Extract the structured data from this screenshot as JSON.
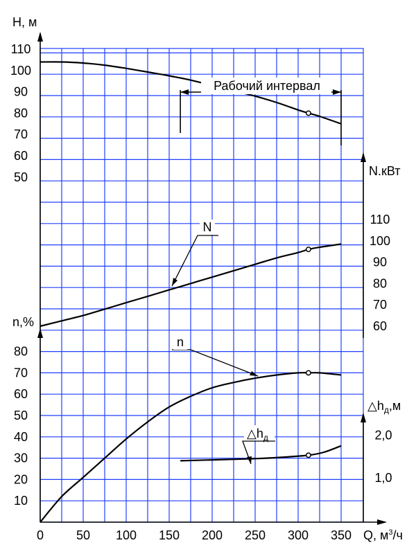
{
  "chart_data": {
    "type": "line",
    "x": {
      "label": "Q, м",
      "label_sup": "3",
      "label_tail": "/ч",
      "min": 0,
      "max": 350,
      "ticks": [
        0,
        50,
        100,
        150,
        200,
        250,
        300,
        350
      ],
      "tick_labels": [
        "0",
        "50",
        "100",
        "150",
        "200",
        "250",
        "300",
        "350"
      ]
    },
    "grid": true,
    "axes": {
      "H": {
        "label": "Н, м",
        "ticks": [
          50,
          60,
          70,
          80,
          90,
          100,
          110
        ],
        "tick_labels": [
          "50",
          "60",
          "70",
          "80",
          "90",
          "100",
          "110"
        ]
      },
      "N": {
        "label": "N.кВт",
        "ticks": [
          60,
          70,
          80,
          90,
          100,
          110
        ],
        "tick_labels": [
          "60",
          "70",
          "80",
          "90",
          "100",
          "110"
        ]
      },
      "n": {
        "label": "n,%",
        "ticks": [
          10,
          20,
          30,
          40,
          50,
          60,
          70,
          80
        ],
        "tick_labels": [
          "10",
          "20",
          "30",
          "40",
          "50",
          "60",
          "70",
          "80"
        ]
      },
      "dh": {
        "label_main": "△h",
        "label_sub": "д",
        "label_tail": ",м",
        "ticks": [
          1.0,
          2.0
        ],
        "tick_labels": [
          "1,0",
          "2,0"
        ]
      }
    },
    "series": [
      {
        "id": "H",
        "axis": "H",
        "points": [
          [
            0,
            104
          ],
          [
            25,
            104
          ],
          [
            50,
            103.5
          ],
          [
            75,
            102.5
          ],
          [
            100,
            101
          ],
          [
            125,
            99.3
          ],
          [
            150,
            97.5
          ],
          [
            175,
            95.5
          ],
          [
            200,
            93
          ],
          [
            225,
            90.5
          ],
          [
            250,
            88
          ],
          [
            275,
            85
          ],
          [
            300,
            81.5
          ],
          [
            312,
            80
          ],
          [
            325,
            78.5
          ],
          [
            350,
            75
          ]
        ],
        "marker": [
          312,
          80
        ]
      },
      {
        "id": "N",
        "axis": "N",
        "name": "N",
        "points": [
          [
            0,
            60
          ],
          [
            25,
            62.5
          ],
          [
            50,
            65
          ],
          [
            75,
            68
          ],
          [
            100,
            71
          ],
          [
            125,
            74
          ],
          [
            150,
            77
          ],
          [
            175,
            80
          ],
          [
            200,
            83
          ],
          [
            225,
            86
          ],
          [
            250,
            89
          ],
          [
            275,
            92
          ],
          [
            300,
            94.5
          ],
          [
            312,
            96
          ],
          [
            325,
            97
          ],
          [
            350,
            98.5
          ]
        ],
        "marker": [
          312,
          96
        ]
      },
      {
        "id": "n",
        "axis": "n",
        "name": "n",
        "points": [
          [
            0,
            0
          ],
          [
            25,
            12
          ],
          [
            50,
            21
          ],
          [
            75,
            30
          ],
          [
            100,
            39
          ],
          [
            125,
            47
          ],
          [
            150,
            54
          ],
          [
            175,
            59
          ],
          [
            200,
            63
          ],
          [
            225,
            65.5
          ],
          [
            250,
            67.5
          ],
          [
            275,
            69
          ],
          [
            300,
            70
          ],
          [
            312,
            70
          ],
          [
            325,
            70
          ],
          [
            350,
            69
          ]
        ],
        "marker": [
          312,
          70
        ]
      },
      {
        "id": "dh",
        "axis": "dh",
        "name_main": "△h",
        "name_sub": "д",
        "points": [
          [
            163,
            1.4
          ],
          [
            200,
            1.42
          ],
          [
            250,
            1.45
          ],
          [
            280,
            1.48
          ],
          [
            312,
            1.53
          ],
          [
            330,
            1.6
          ],
          [
            350,
            1.75
          ]
        ],
        "marker": [
          312,
          1.53
        ]
      }
    ],
    "annotations": {
      "working_interval": {
        "text": "Рабочий интервал",
        "x_from": 163,
        "x_to": 350
      },
      "N_label": "N",
      "n_label": "n",
      "dh_label_main": "△h",
      "dh_label_sub": "д"
    }
  }
}
